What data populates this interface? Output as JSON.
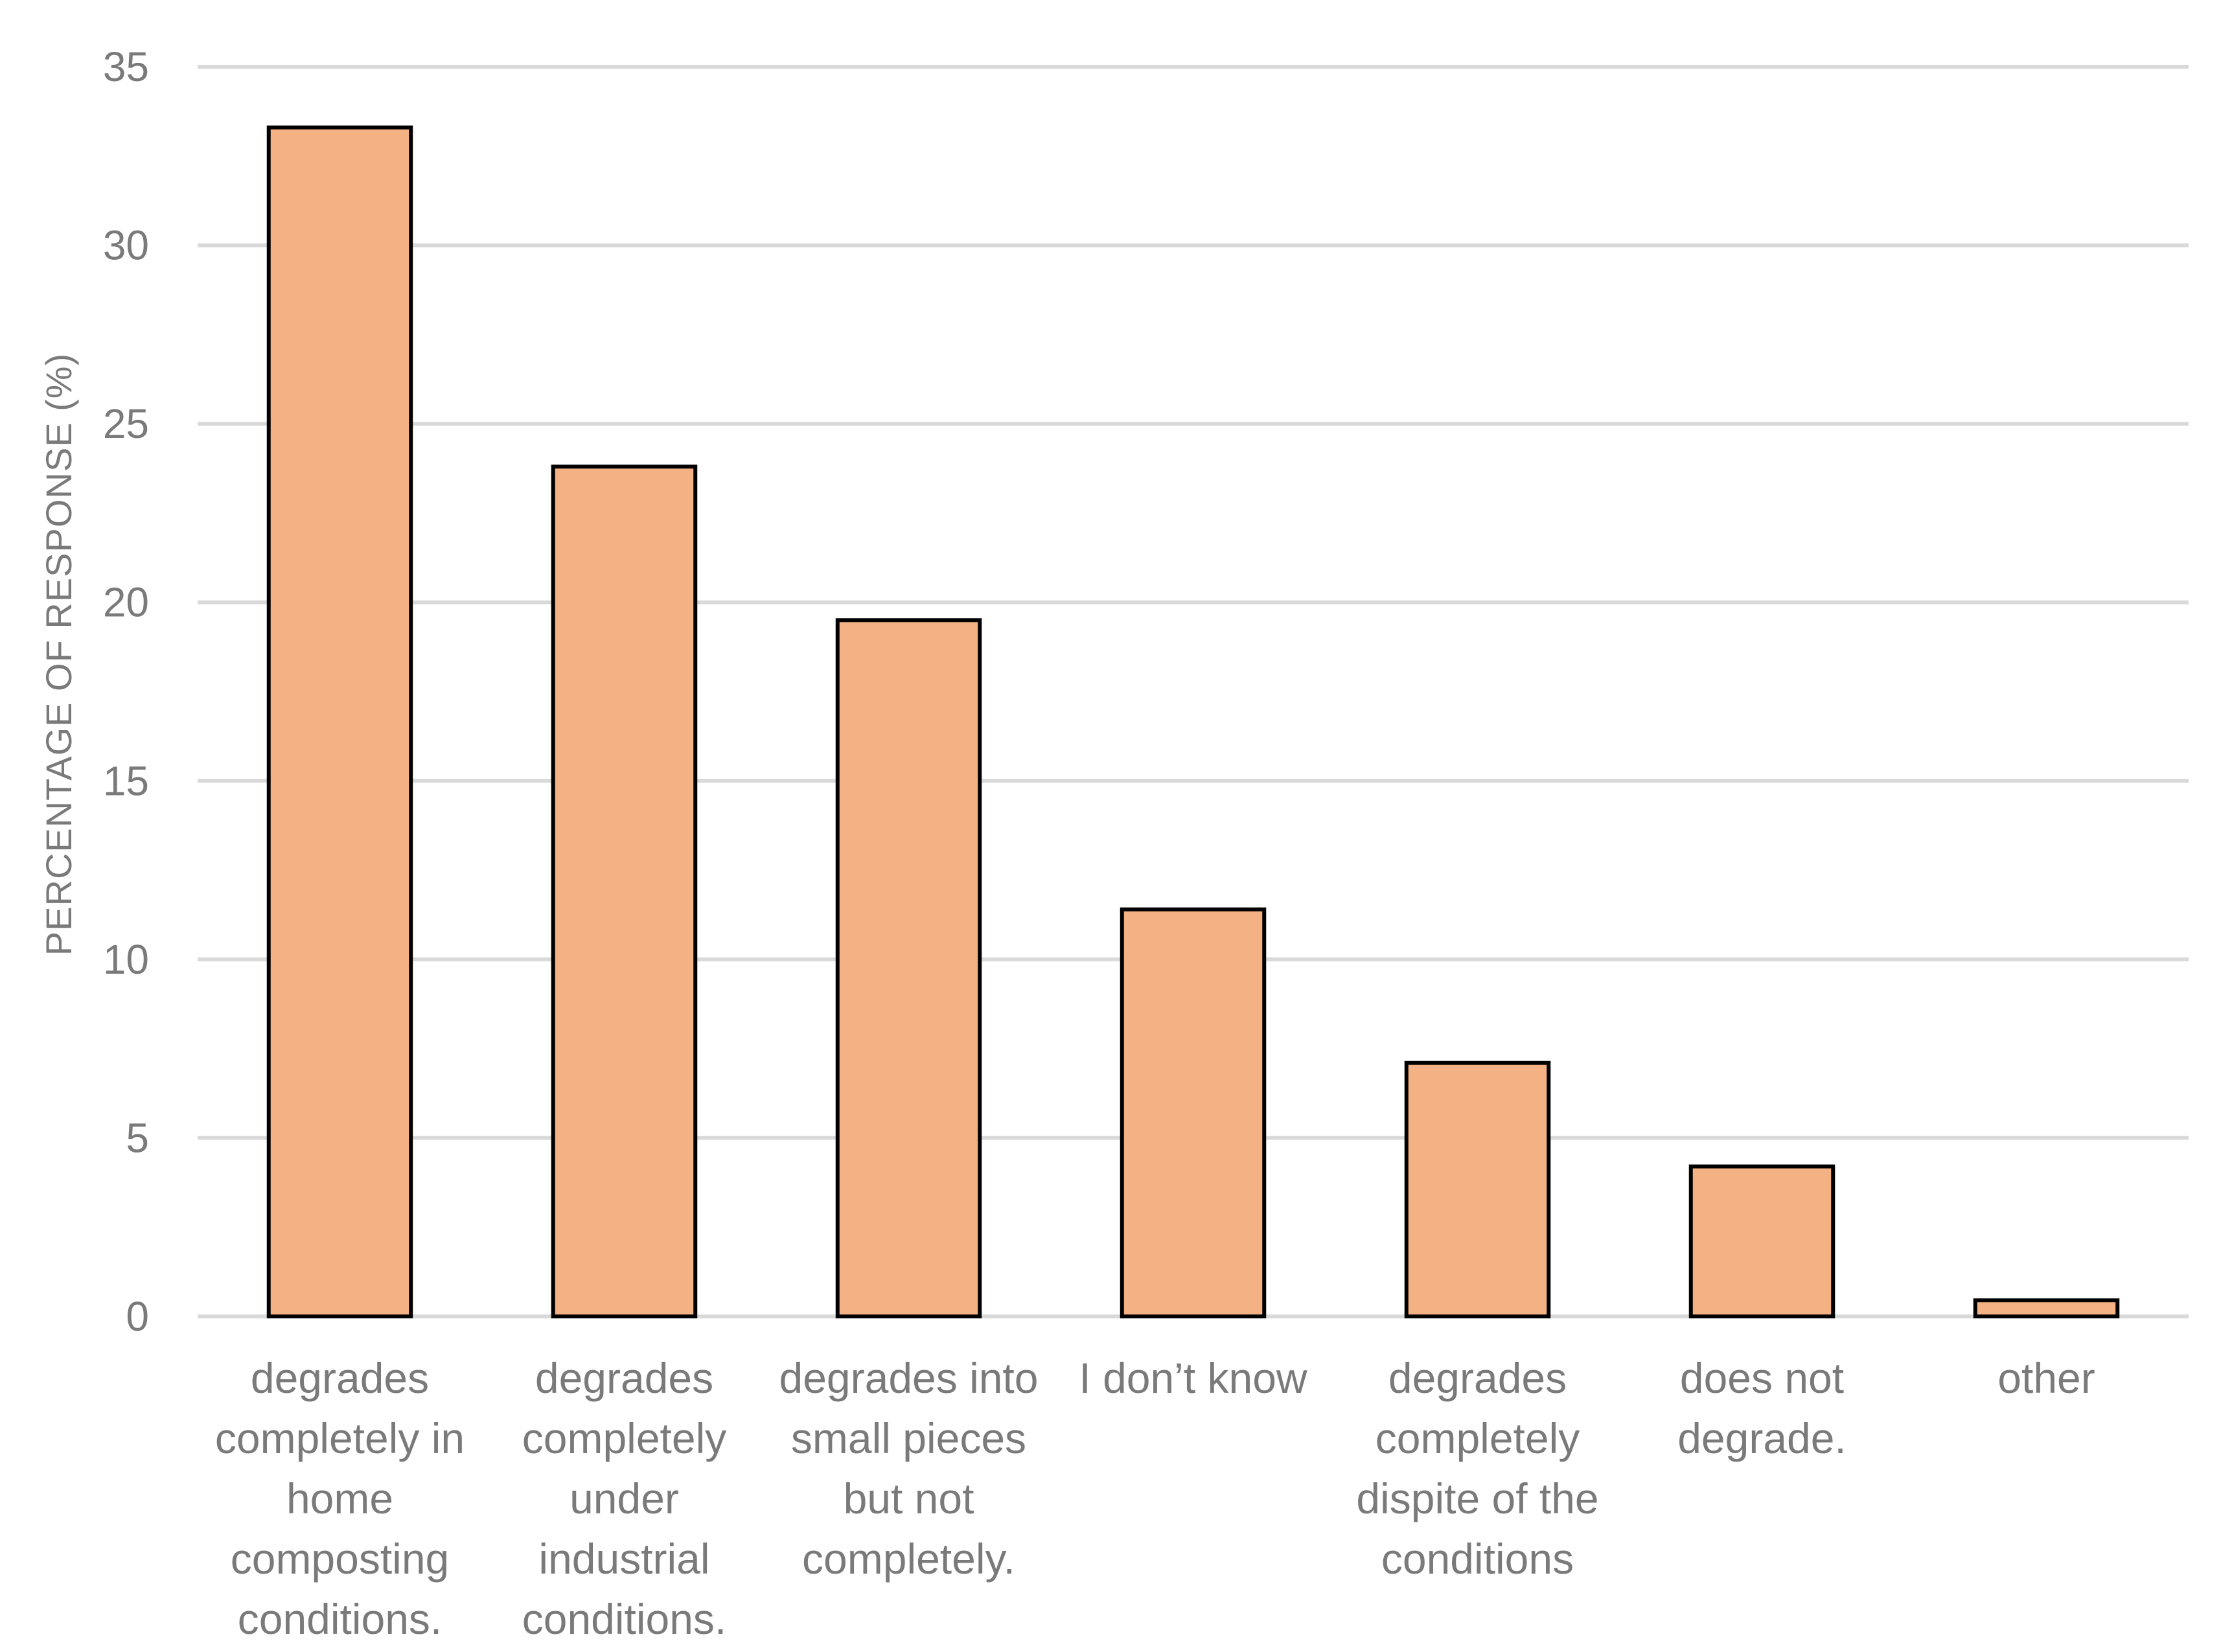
{
  "chart_data": {
    "type": "bar",
    "title": "",
    "xlabel": "",
    "ylabel": "PERCENTAGE OF RESPONSE (%)",
    "ylim": [
      0,
      35
    ],
    "yticks": [
      0,
      5,
      10,
      15,
      20,
      25,
      30,
      35
    ],
    "grid": true,
    "categories": [
      "degrades completely in home composting conditions.",
      "degrades completely under industrial conditions.",
      "degrades into small pieces but not completely.",
      "I don’t know",
      "degrades completely dispite of the conditions",
      "does not degrade.",
      "other"
    ],
    "category_lines": [
      [
        "degrades",
        "completely in",
        "home",
        "composting",
        "conditions."
      ],
      [
        "degrades",
        "completely",
        "under",
        "industrial",
        "conditions."
      ],
      [
        "degrades into",
        "small pieces",
        "but not",
        "completely."
      ],
      [
        "I don’t know"
      ],
      [
        "degrades",
        "completely",
        "dispite of the",
        "conditions"
      ],
      [
        "does not",
        "degrade."
      ],
      [
        "other"
      ]
    ],
    "values": [
      33.3,
      23.8,
      19.5,
      11.4,
      7.1,
      4.2,
      0.45
    ],
    "bar_color": "#f4b183",
    "bar_edge_color": "#000000",
    "grid_color": "#d9d9d9",
    "text_color": "#7a7a7a"
  }
}
